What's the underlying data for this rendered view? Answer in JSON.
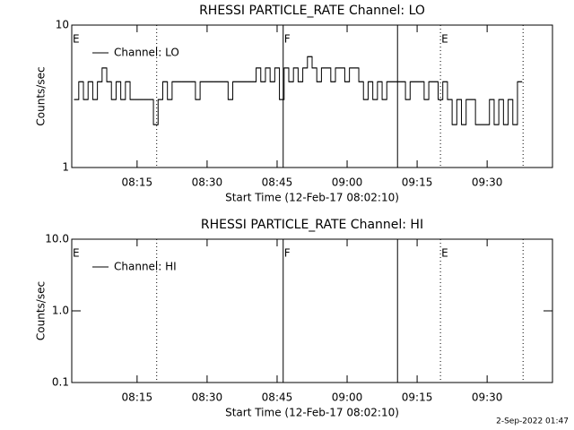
{
  "chart_data": [
    {
      "type": "line",
      "title": "RHESSI PARTICLE_RATE Channel: LO",
      "xlabel": "Start Time (12-Feb-17 08:02:10)",
      "ylabel": "Counts/sec",
      "log_y": true,
      "ylim": [
        1,
        10
      ],
      "yticks": [
        1,
        10
      ],
      "xlim": [
        481,
        584
      ],
      "xticks": [
        {
          "value": 495,
          "label": "08:15"
        },
        {
          "value": 510,
          "label": "08:30"
        },
        {
          "value": 525,
          "label": "08:45"
        },
        {
          "value": 540,
          "label": "09:00"
        },
        {
          "value": 555,
          "label": "09:15"
        },
        {
          "value": 570,
          "label": "09:30"
        }
      ],
      "legend": "upper left",
      "series": [
        {
          "name": "Channel: LO",
          "color": "#000000",
          "step": true,
          "x": [
            482,
            483,
            484,
            485,
            486,
            487,
            488,
            489,
            490,
            491,
            492,
            493,
            494,
            495,
            496,
            497,
            498,
            499,
            500,
            501,
            502,
            503,
            504,
            505,
            506,
            507,
            508,
            509,
            510,
            511,
            512,
            513,
            514,
            515,
            516,
            517,
            518,
            519,
            520,
            521,
            522,
            523,
            524,
            525,
            526,
            527,
            528,
            529,
            530,
            531,
            532,
            533,
            534,
            535,
            536,
            537,
            538,
            539,
            540,
            541,
            542,
            543,
            544,
            545,
            546,
            547,
            548,
            549,
            550,
            551,
            552,
            553,
            554,
            555,
            556,
            557,
            558,
            559,
            560,
            561,
            562,
            563,
            564,
            565,
            566,
            567,
            568,
            569,
            570,
            571,
            572,
            573,
            574,
            575,
            576,
            577
          ],
          "values": [
            3,
            4,
            3,
            4,
            3,
            4,
            5,
            4,
            3,
            4,
            3,
            4,
            3,
            3,
            3,
            3,
            3,
            2,
            3,
            4,
            3,
            4,
            4,
            4,
            4,
            4,
            3,
            4,
            4,
            4,
            4,
            4,
            4,
            3,
            4,
            4,
            4,
            4,
            4,
            5,
            4,
            5,
            4,
            5,
            3,
            5,
            4,
            5,
            4,
            5,
            6,
            5,
            4,
            5,
            5,
            4,
            5,
            5,
            4,
            5,
            5,
            4,
            3,
            4,
            3,
            4,
            3,
            4,
            4,
            4,
            4,
            3,
            4,
            4,
            4,
            3,
            4,
            4,
            3,
            4,
            3,
            2,
            3,
            2,
            3,
            3,
            2,
            2,
            2,
            3,
            2,
            3,
            2,
            3,
            2,
            4
          ]
        }
      ],
      "events": [
        {
          "x": 499.2,
          "style": "dotted"
        },
        {
          "x": 526.3,
          "style": "solid"
        },
        {
          "x": 550.8,
          "style": "solid"
        },
        {
          "x": 560,
          "style": "dotted"
        },
        {
          "x": 577.7,
          "style": "dotted"
        }
      ],
      "annotations": [
        {
          "text": "E",
          "x": 481
        },
        {
          "text": "F",
          "x": 526.3
        },
        {
          "text": "E",
          "x": 560
        }
      ]
    },
    {
      "type": "line",
      "title": "RHESSI PARTICLE_RATE Channel: HI",
      "xlabel": "Start Time (12-Feb-17 08:02:10)",
      "ylabel": "Counts/sec",
      "log_y": true,
      "ylim": [
        0.1,
        10
      ],
      "yticks": [
        0.1,
        {
          "value": 1,
          "label": "1.0"
        },
        {
          "value": 10,
          "label": "10.0"
        }
      ],
      "xlim": [
        481,
        584
      ],
      "xticks": [
        {
          "value": 495,
          "label": "08:15"
        },
        {
          "value": 510,
          "label": "08:30"
        },
        {
          "value": 525,
          "label": "08:45"
        },
        {
          "value": 540,
          "label": "09:00"
        },
        {
          "value": 555,
          "label": "09:15"
        },
        {
          "value": 570,
          "label": "09:30"
        }
      ],
      "legend": "upper left",
      "series": [
        {
          "name": "Channel: HI",
          "color": "#000000",
          "step": true,
          "x": [],
          "values": []
        }
      ],
      "events": [
        {
          "x": 499.2,
          "style": "dotted"
        },
        {
          "x": 526.3,
          "style": "solid"
        },
        {
          "x": 550.8,
          "style": "solid"
        },
        {
          "x": 560,
          "style": "dotted"
        },
        {
          "x": 577.7,
          "style": "dotted"
        }
      ],
      "annotations": [
        {
          "text": "E",
          "x": 481
        },
        {
          "text": "F",
          "x": 526.3
        },
        {
          "text": "E",
          "x": 560
        }
      ]
    }
  ],
  "footer": "2-Sep-2022 01:47"
}
